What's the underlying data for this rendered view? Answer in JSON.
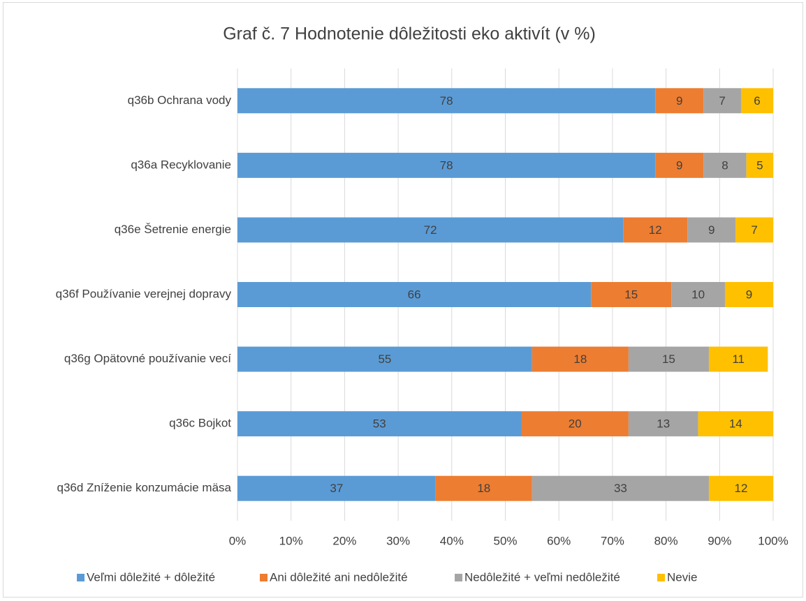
{
  "chart_data": {
    "type": "stacked_barh",
    "title": "Graf č. 7 Hodnotenie dôležitosti eko aktivít (v %)",
    "categories": [
      "q36b Ochrana vody",
      "q36a Recyklovanie",
      "q36e Šetrenie energie",
      "q36f Používanie verejnej dopravy",
      "q36g Opätovné používanie vecí",
      "q36c Bojkot",
      "q36d Zníženie konzumácie mäsa"
    ],
    "series": [
      {
        "name": "Veľmi dôležité + dôležité",
        "color": "#5b9bd5",
        "values": [
          78,
          78,
          72,
          66,
          55,
          53,
          37
        ]
      },
      {
        "name": "Ani dôležité ani nedôležité",
        "color": "#ed7d31",
        "values": [
          9,
          9,
          12,
          15,
          18,
          20,
          18
        ]
      },
      {
        "name": "Nedôležité + veľmi nedôležité",
        "color": "#a5a5a5",
        "values": [
          7,
          8,
          9,
          10,
          15,
          13,
          33
        ]
      },
      {
        "name": "Nevie",
        "color": "#ffc000",
        "values": [
          6,
          5,
          7,
          9,
          11,
          14,
          12
        ]
      }
    ],
    "xlim": [
      0,
      100
    ],
    "xticks": [
      {
        "value": 0,
        "label": "0%"
      },
      {
        "value": 10,
        "label": "10%"
      },
      {
        "value": 20,
        "label": "20%"
      },
      {
        "value": 30,
        "label": "30%"
      },
      {
        "value": 40,
        "label": "40%"
      },
      {
        "value": 50,
        "label": "50%"
      },
      {
        "value": 60,
        "label": "60%"
      },
      {
        "value": 70,
        "label": "70%"
      },
      {
        "value": 80,
        "label": "80%"
      },
      {
        "value": 90,
        "label": "90%"
      },
      {
        "value": 100,
        "label": "100%"
      }
    ],
    "grid": true,
    "legend": "bottom"
  }
}
